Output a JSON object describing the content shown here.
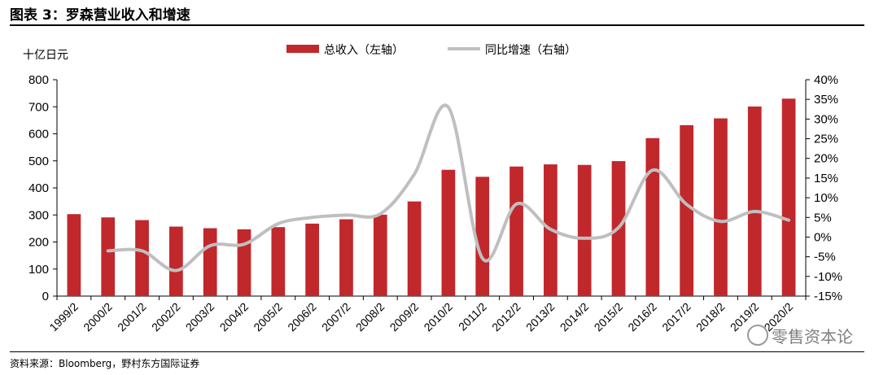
{
  "figure": {
    "title": "图表 3：罗森营业收入和增速",
    "source": "资料来源：Bloomberg，野村东方国际证券",
    "watermark": "零售资本论"
  },
  "chart_data": {
    "type": "bar",
    "unit_label": "十亿日元",
    "categories": [
      "1999/2",
      "2000/2",
      "2001/2",
      "2002/2",
      "2003/2",
      "2004/2",
      "2005/2",
      "2006/2",
      "2007/2",
      "2008/2",
      "2009/2",
      "2010/2",
      "2011/2",
      "2012/2",
      "2013/2",
      "2014/2",
      "2015/2",
      "2016/2",
      "2017/2",
      "2018/2",
      "2019/2",
      "2020/2"
    ],
    "series": [
      {
        "name": "总收入（左轴）",
        "type": "bar",
        "axis": "left",
        "color": "#C0282C",
        "values": [
          303,
          291,
          281,
          257,
          251,
          247,
          255,
          268,
          284,
          301,
          350,
          467,
          441,
          479,
          487,
          485,
          499,
          584,
          632,
          657,
          701,
          730
        ]
      },
      {
        "name": "同比增速（右轴）",
        "type": "line",
        "axis": "right",
        "color": "#BFBFBF",
        "values": [
          null,
          -3.5,
          -3.5,
          -8.5,
          -2.2,
          -1.8,
          3.4,
          5.0,
          5.6,
          5.9,
          16.0,
          33.0,
          -5.4,
          8.4,
          2.0,
          -0.3,
          2.4,
          17.0,
          8.3,
          4.0,
          6.5,
          4.3
        ]
      }
    ],
    "y_left": {
      "min": 0,
      "max": 800,
      "step": 100,
      "ticks": [
        "0",
        "100",
        "200",
        "300",
        "400",
        "500",
        "600",
        "700",
        "800"
      ]
    },
    "y_right": {
      "min": -15,
      "max": 40,
      "step": 5,
      "ticks": [
        "-15%",
        "-10%",
        "-5%",
        "0%",
        "5%",
        "10%",
        "15%",
        "20%",
        "25%",
        "30%",
        "35%",
        "40%"
      ]
    },
    "grid": false,
    "legend_position": "top-center"
  }
}
